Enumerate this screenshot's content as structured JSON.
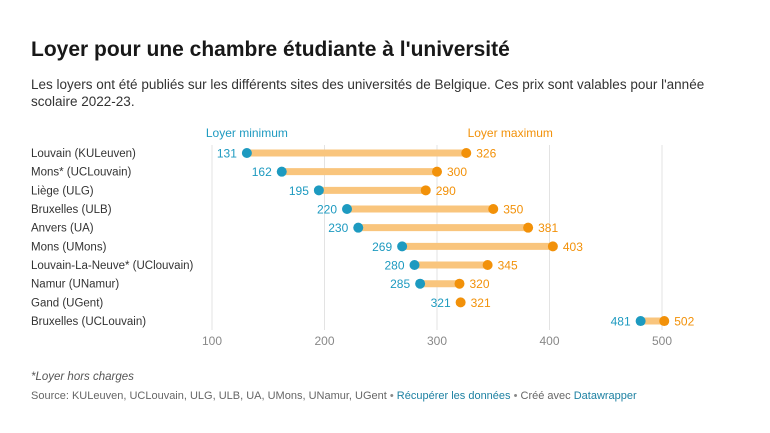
{
  "header": {
    "title": "Loyer pour une chambre étudiante à l'université",
    "subtitle": "Les loyers ont été publiés sur les différents sites des universités de Belgique. Ces prix sont valables pour l'année scolaire 2022-23."
  },
  "chart_data": {
    "type": "dumbbell",
    "title": "Loyer pour une chambre étudiante à l'université",
    "xlim": [
      100,
      500
    ],
    "xticks": [
      100,
      200,
      300,
      400,
      500
    ],
    "grid": true,
    "series": [
      {
        "name": "Loyer minimum",
        "color": "#1d9ac0",
        "values": [
          131,
          162,
          195,
          220,
          230,
          269,
          280,
          285,
          321,
          481
        ]
      },
      {
        "name": "Loyer maximum",
        "color": "#f29109",
        "values": [
          326,
          300,
          290,
          350,
          381,
          403,
          345,
          320,
          321,
          502
        ]
      }
    ],
    "categories": [
      "Louvain (KULeuven)",
      "Mons* (UCLouvain)",
      "Liège (ULG)",
      "Bruxelles (ULB)",
      "Anvers (UA)",
      "Mons (UMons)",
      "Louvain-La-Neuve* (UClouvain)",
      "Namur (UNamur)",
      "Gand (UGent)",
      "Bruxelles (UCLouvain)"
    ],
    "bar_color": "#f9c57d"
  },
  "footer": {
    "note": "*Loyer hors charges",
    "source": "Source: KULeuven, UCLouvain, ULG, ULB, UA, UMons, UNamur, UGent",
    "sep1": " • ",
    "download_link": "Récupérer les données",
    "sep2": " • ",
    "created_with": "Créé avec ",
    "datawrapper_link": "Datawrapper"
  }
}
